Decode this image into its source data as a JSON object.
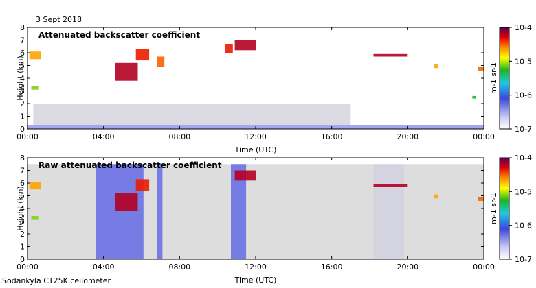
{
  "figure": {
    "date": "3 Sept 2018",
    "footer": "Sodankyla CT25K ceilometer"
  },
  "chart_data": [
    {
      "type": "heatmap",
      "title": "Attenuated backscatter coefficient",
      "xlabel": "Time (UTC)",
      "ylabel": "Height (km)",
      "xlim": [
        0,
        24
      ],
      "ylim": [
        0,
        8
      ],
      "x_ticks": [
        0,
        4,
        8,
        12,
        16,
        20,
        24
      ],
      "x_tick_labels": [
        "00:00",
        "04:00",
        "08:00",
        "12:00",
        "16:00",
        "20:00",
        "00:00"
      ],
      "y_ticks": [
        0,
        1,
        2,
        3,
        4,
        5,
        6,
        7,
        8
      ],
      "y_tick_labels": [
        "0",
        "1",
        "2",
        "3",
        "4",
        "5",
        "6",
        "7",
        "8"
      ],
      "colorbar": {
        "label": "m-1 sr-1",
        "scale": "log",
        "range": [
          1e-07,
          0.0001
        ],
        "tick_labels": [
          "10-7",
          "10-6",
          "10-5",
          "10-4"
        ],
        "tick_positions": [
          0,
          1,
          2,
          3
        ]
      },
      "features": [
        {
          "name": "surface aerosol layer",
          "t": [
            0,
            24
          ],
          "h": [
            0,
            0.3
          ],
          "level": 0.25
        },
        {
          "name": "low aerosol haze",
          "t": [
            0.3,
            17
          ],
          "h": [
            0.3,
            2.0
          ],
          "level": 0.08
        },
        {
          "name": "early mid cloud",
          "t": [
            0.1,
            0.7
          ],
          "h": [
            5.5,
            6.1
          ],
          "level": 0.8
        },
        {
          "name": "early low cloud",
          "t": [
            0.2,
            0.6
          ],
          "h": [
            3.1,
            3.4
          ],
          "level": 0.65
        },
        {
          "name": "morning mid-level cloud",
          "t": [
            4.6,
            5.8
          ],
          "h": [
            3.8,
            5.2
          ],
          "level": 0.95
        },
        {
          "name": "morning upper cloud",
          "t": [
            5.7,
            6.4
          ],
          "h": [
            5.4,
            6.3
          ],
          "level": 0.9
        },
        {
          "name": "morning cloud 7h",
          "t": [
            6.8,
            7.2
          ],
          "h": [
            4.9,
            5.7
          ],
          "level": 0.85
        },
        {
          "name": "late-morning high cloud",
          "t": [
            10.9,
            12.0
          ],
          "h": [
            6.2,
            7.0
          ],
          "level": 0.95
        },
        {
          "name": "late-morning cloud",
          "t": [
            10.4,
            10.8
          ],
          "h": [
            6.0,
            6.7
          ],
          "level": 0.9
        },
        {
          "name": "evening cloud",
          "t": [
            18.2,
            20.0
          ],
          "h": [
            5.7,
            5.9
          ],
          "level": 0.95
        },
        {
          "name": "cloud 21.5h",
          "t": [
            21.4,
            21.6
          ],
          "h": [
            4.8,
            5.1
          ],
          "level": 0.8
        },
        {
          "name": "cloud 23.8h",
          "t": [
            23.7,
            24.0
          ],
          "h": [
            4.6,
            4.9
          ],
          "level": 0.85
        },
        {
          "name": "cloud 23.4h",
          "t": [
            23.4,
            23.6
          ],
          "h": [
            2.4,
            2.6
          ],
          "level": 0.6
        }
      ]
    },
    {
      "type": "heatmap",
      "title": "Raw attenuated backscatter coefficient",
      "xlabel": "Time (UTC)",
      "ylabel": "Height (km)",
      "xlim": [
        0,
        24
      ],
      "ylim": [
        0,
        8
      ],
      "x_ticks": [
        0,
        4,
        8,
        12,
        16,
        20,
        24
      ],
      "x_tick_labels": [
        "00:00",
        "04:00",
        "08:00",
        "12:00",
        "16:00",
        "20:00",
        "00:00"
      ],
      "y_ticks": [
        0,
        1,
        2,
        3,
        4,
        5,
        6,
        7,
        8
      ],
      "y_tick_labels": [
        "0",
        "1",
        "2",
        "3",
        "4",
        "5",
        "6",
        "7",
        "8"
      ],
      "colorbar": {
        "label": "m-1 sr-1",
        "scale": "log",
        "range": [
          1e-07,
          0.0001
        ],
        "tick_labels": [
          "10-7",
          "10-6",
          "10-5",
          "10-4"
        ],
        "tick_positions": [
          0,
          1,
          2,
          3
        ]
      },
      "features": [
        {
          "name": "background noise",
          "t": [
            0,
            24
          ],
          "h": [
            0,
            7.5
          ],
          "level": 0.05
        },
        {
          "name": "daytime noise block",
          "t": [
            3.6,
            6.1
          ],
          "h": [
            0,
            7.5
          ],
          "level": 0.3
        },
        {
          "name": "noise column 7h",
          "t": [
            6.8,
            7.1
          ],
          "h": [
            0,
            7.5
          ],
          "level": 0.3
        },
        {
          "name": "noise column 11h",
          "t": [
            10.7,
            11.5
          ],
          "h": [
            0,
            7.5
          ],
          "level": 0.3
        },
        {
          "name": "evening noise block",
          "t": [
            18.2,
            19.8
          ],
          "h": [
            0,
            7.5
          ],
          "level": 0.1
        },
        {
          "name": "early mid cloud",
          "t": [
            0.1,
            0.7
          ],
          "h": [
            5.5,
            6.1
          ],
          "level": 0.8
        },
        {
          "name": "early low cloud",
          "t": [
            0.2,
            0.6
          ],
          "h": [
            3.1,
            3.4
          ],
          "level": 0.65
        },
        {
          "name": "morning mid-level cloud",
          "t": [
            4.6,
            5.8
          ],
          "h": [
            3.8,
            5.2
          ],
          "level": 0.95
        },
        {
          "name": "morning upper cloud",
          "t": [
            5.7,
            6.4
          ],
          "h": [
            5.4,
            6.3
          ],
          "level": 0.9
        },
        {
          "name": "late-morning high cloud",
          "t": [
            10.9,
            12.0
          ],
          "h": [
            6.2,
            7.0
          ],
          "level": 0.95
        },
        {
          "name": "evening cloud",
          "t": [
            18.2,
            20.0
          ],
          "h": [
            5.7,
            5.9
          ],
          "level": 0.95
        },
        {
          "name": "cloud 21.5h",
          "t": [
            21.4,
            21.6
          ],
          "h": [
            4.8,
            5.1
          ],
          "level": 0.8
        },
        {
          "name": "cloud 23.8h",
          "t": [
            23.7,
            24.0
          ],
          "h": [
            4.6,
            4.9
          ],
          "level": 0.85
        }
      ]
    }
  ]
}
